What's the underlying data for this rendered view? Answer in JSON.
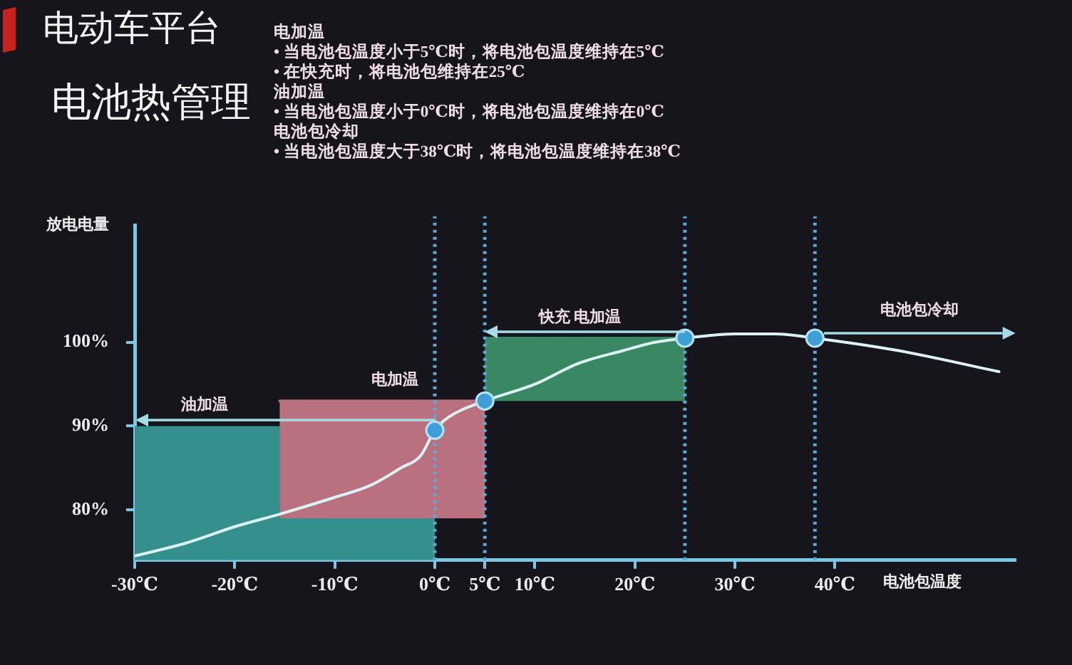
{
  "chart_data": {
    "type": "line",
    "title": "电动车平台",
    "subtitle": "电池热管理",
    "xlabel": "电池包温度",
    "ylabel": "放电电量",
    "xlim": [
      -30,
      58
    ],
    "xticks": [
      {
        "value": -30,
        "label": "-30℃"
      },
      {
        "value": -20,
        "label": "-20℃"
      },
      {
        "value": -10,
        "label": "-10℃"
      },
      {
        "value": 0,
        "label": "0℃"
      },
      {
        "value": 5,
        "label": "5℃"
      },
      {
        "value": 10,
        "label": "10℃"
      },
      {
        "value": 20,
        "label": "20℃"
      },
      {
        "value": 30,
        "label": "30℃"
      },
      {
        "value": 40,
        "label": "40℃"
      }
    ],
    "ylim": [
      74,
      114
    ],
    "yticks": [
      {
        "value": 80,
        "label": "80%"
      },
      {
        "value": 90,
        "label": "90%"
      },
      {
        "value": 100,
        "label": "100%"
      }
    ],
    "series": [
      {
        "type": "area",
        "color": "#358f8d",
        "x": [
          -30,
          0
        ],
        "values": [
          90,
          90
        ]
      },
      {
        "type": "line",
        "color": "#b9717f",
        "x": [
          -15.5,
          5
        ],
        "values": [
          93,
          93
        ],
        "lower": [
          79,
          79
        ],
        "upper": [
          93,
          93
        ]
      },
      {
        "type": "line",
        "color": "#3a8763",
        "x": [
          5,
          25
        ],
        "values": [
          100.5,
          100.5
        ],
        "lower": [
          93,
          93
        ],
        "upper": [
          100.5,
          100.5
        ]
      },
      {
        "type": "line",
        "color": "#dcf1f4",
        "x": [
          -30,
          -25,
          -20,
          -15.5,
          -10,
          -6.3,
          -3.4,
          -1.4,
          0,
          1.3,
          5,
          10,
          14.4,
          18.8,
          22,
          25,
          30,
          34,
          38,
          46.4,
          56.4
        ],
        "values": [
          74.5,
          76,
          78,
          79.5,
          81.5,
          83,
          85,
          86.5,
          89.5,
          91,
          93,
          95,
          97.5,
          99,
          100,
          100.5,
          101,
          101,
          100.5,
          99,
          96.5
        ]
      },
      {
        "type": "scatter",
        "color": "#3e9ed8",
        "x": [
          0,
          5,
          25,
          38
        ],
        "values": [
          89.5,
          93,
          100.5,
          100.5
        ],
        "marker": "circle"
      }
    ],
    "ref_lines": [
      {
        "axis": "x",
        "value": 0,
        "line_style": "dotted",
        "color": "#5aa8dc"
      },
      {
        "axis": "x",
        "value": 5,
        "line_style": "dotted",
        "color": "#5aa8dc"
      },
      {
        "axis": "x",
        "value": 25,
        "line_style": "dotted",
        "color": "#5aa8dc"
      },
      {
        "axis": "x",
        "value": 38,
        "line_style": "dotted",
        "color": "#5aa8dc"
      }
    ],
    "annotations": [
      "电加温",
      "• 当电池包温度小于5℃时，将电池包温度维持在5℃",
      "• 在快充时，将电池包维持在25℃",
      "油加温",
      "• 当电池包温度小于0℃时，将电池包温度维持在0℃",
      "电池包冷却",
      "• 当电池包温度大于38℃时，将电池包温度维持在38℃",
      {
        "text": "油加温",
        "x": -23,
        "y": 90
      },
      {
        "text": "电加温",
        "x": -4,
        "y": 93
      },
      {
        "text": "快充 电加温",
        "x": 14.5,
        "y": 100.5
      },
      "电池包冷却"
    ]
  }
}
